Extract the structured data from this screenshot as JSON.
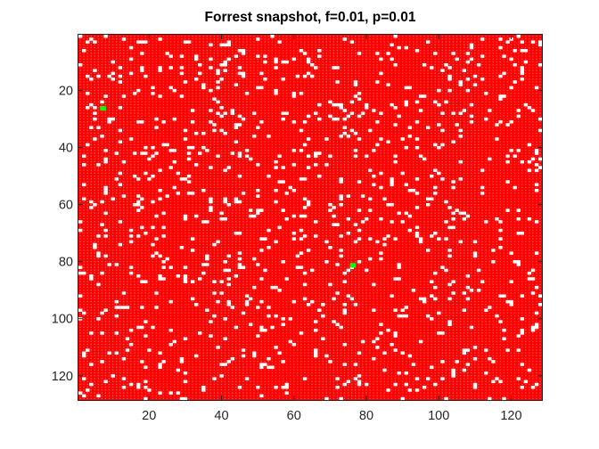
{
  "chart_data": {
    "type": "heatmap",
    "title": "Forrest snapshot, f=0.01, p=0.01",
    "xlabel": "",
    "ylabel": "",
    "grid_size": 128,
    "xlim": [
      0.5,
      128.5
    ],
    "ylim": [
      0.5,
      128.5
    ],
    "y_reversed": true,
    "x_ticks": [
      20,
      40,
      60,
      80,
      100,
      120
    ],
    "y_ticks": [
      20,
      40,
      60,
      80,
      100,
      120
    ],
    "x_tick_labels": [
      "20",
      "40",
      "60",
      "80",
      "100",
      "120"
    ],
    "y_tick_labels": [
      "20",
      "40",
      "60",
      "80",
      "100",
      "120"
    ],
    "grid": false,
    "colors": {
      "tree": "#ff0000",
      "empty": "#ffffff",
      "fire": "#00ff00",
      "cell_dot": "#ff9999"
    },
    "burning_cells": [
      [
        7,
        26
      ],
      [
        76,
        81
      ]
    ],
    "empty_fraction": 0.07
  }
}
